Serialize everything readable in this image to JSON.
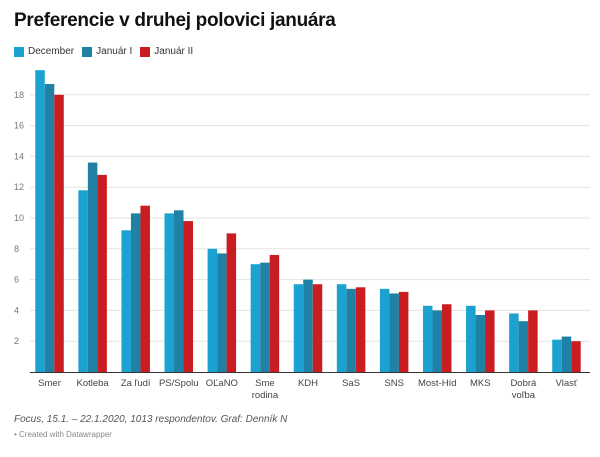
{
  "chart_data": {
    "type": "bar",
    "title": "Preferencie v druhej polovici januára",
    "categories": [
      "Smer",
      "Kotleba",
      "Za ľudí",
      "PS/Spolu",
      "OĽaNO",
      "Sme rodina",
      "KDH",
      "SaS",
      "SNS",
      "Most-Híd",
      "MKS",
      "Dobrá voľba",
      "Vlasť"
    ],
    "category_lines": [
      [
        "Smer"
      ],
      [
        "Kotleba"
      ],
      [
        "Za ľudí"
      ],
      [
        "PS/Spolu"
      ],
      [
        "OĽaNO"
      ],
      [
        "Sme",
        "rodina"
      ],
      [
        "KDH"
      ],
      [
        "SaS"
      ],
      [
        "SNS"
      ],
      [
        "Most-Híd"
      ],
      [
        "MKS"
      ],
      [
        "Dobrá",
        "voľba"
      ],
      [
        "Vlasť"
      ]
    ],
    "series": [
      {
        "name": "December",
        "color": "#1ba2d0",
        "values": [
          19.6,
          11.8,
          9.2,
          10.3,
          8.0,
          7.0,
          5.7,
          5.7,
          5.4,
          4.3,
          4.3,
          3.8,
          2.1
        ]
      },
      {
        "name": "Január I",
        "color": "#1f82a4",
        "values": [
          18.7,
          13.6,
          10.3,
          10.5,
          7.7,
          7.1,
          6.0,
          5.4,
          5.1,
          4.0,
          3.7,
          3.3,
          2.3
        ]
      },
      {
        "name": "Január II",
        "color": "#c91d22",
        "values": [
          18.0,
          12.8,
          10.8,
          9.8,
          9.0,
          7.6,
          5.7,
          5.5,
          5.2,
          4.4,
          4.0,
          4.0,
          2.0
        ]
      }
    ],
    "yticks": [
      2,
      4,
      6,
      8,
      10,
      12,
      14,
      16,
      18
    ],
    "ylim": [
      0,
      20
    ],
    "grid": true,
    "legend_position": "top-left",
    "xlabel": "",
    "ylabel": ""
  },
  "notes": "Focus, 15.1. – 22.1.2020, 1013 respondentov. Graf: Denník N",
  "credit": "• Created with Datawrapper"
}
